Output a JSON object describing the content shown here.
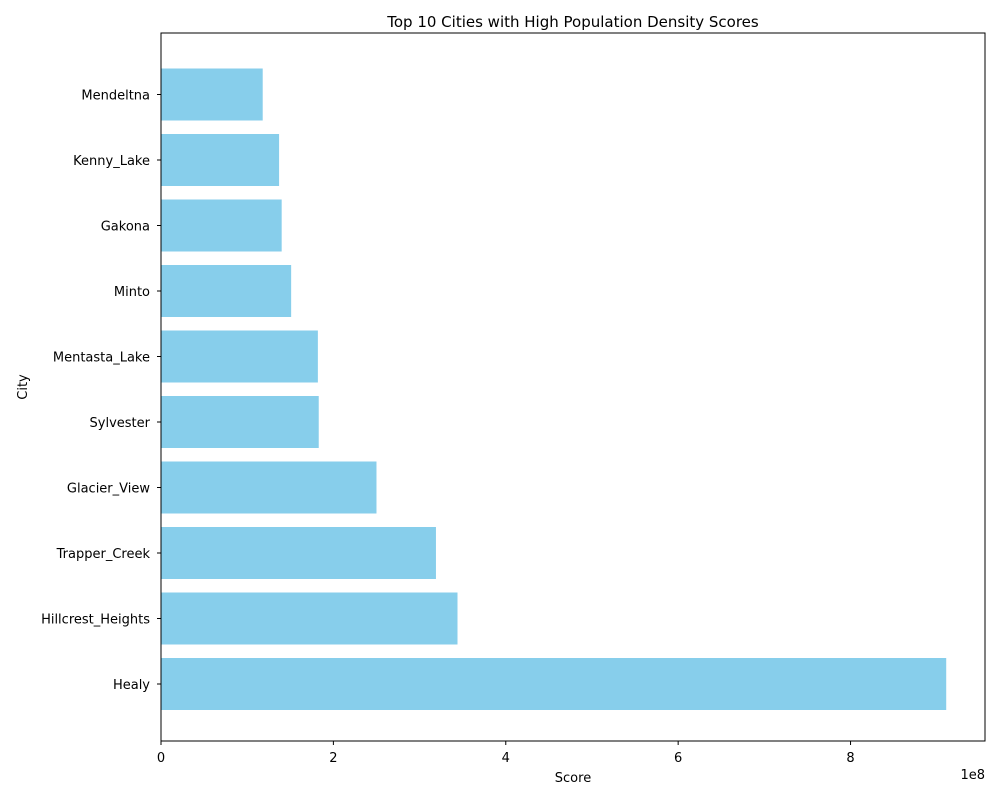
{
  "chart_data": {
    "type": "bar",
    "orientation": "horizontal",
    "title": "Top 10 Cities with High Population Density Scores",
    "xlabel": "Score",
    "ylabel": "City",
    "x_scale_label": "1e8",
    "x_tick_labels": [
      "0",
      "2",
      "4",
      "6",
      "8"
    ],
    "x_ticks": [
      0,
      200000000,
      400000000,
      600000000,
      800000000
    ],
    "xlim": [
      0,
      956000000
    ],
    "categories": [
      "Healy",
      "Hillcrest_Heights",
      "Trapper_Creek",
      "Glacier_View",
      "Sylvester",
      "Mentasta_Lake",
      "Minto",
      "Gakona",
      "Kenny_Lake",
      "Mendeltna"
    ],
    "values": [
      911000000,
      344000000,
      319000000,
      250000000,
      183000000,
      182000000,
      151000000,
      140000000,
      137000000,
      118000000
    ],
    "bar_color": "#87ceeb",
    "grid": false,
    "legend": "none"
  }
}
